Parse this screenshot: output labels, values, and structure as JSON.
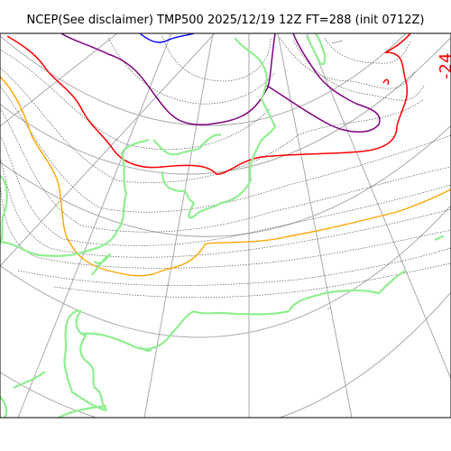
{
  "title": "NCEP(See disclaimer) TMP500 2025/12/19 12Z FT=288 (init 0712Z)",
  "contour_labels": [
    {
      "text": "-24",
      "color": "#ff0000"
    }
  ],
  "colors": {
    "graticule": "#aaaaaa",
    "coastline": "#90ee90",
    "minor_isotherm": "#555555",
    "isotherm_purple": "#800080",
    "isotherm_red": "#ff0000",
    "isotherm_orange": "#ffa500",
    "isotherm_blue": "#0000ff",
    "frame": "#000000"
  }
}
